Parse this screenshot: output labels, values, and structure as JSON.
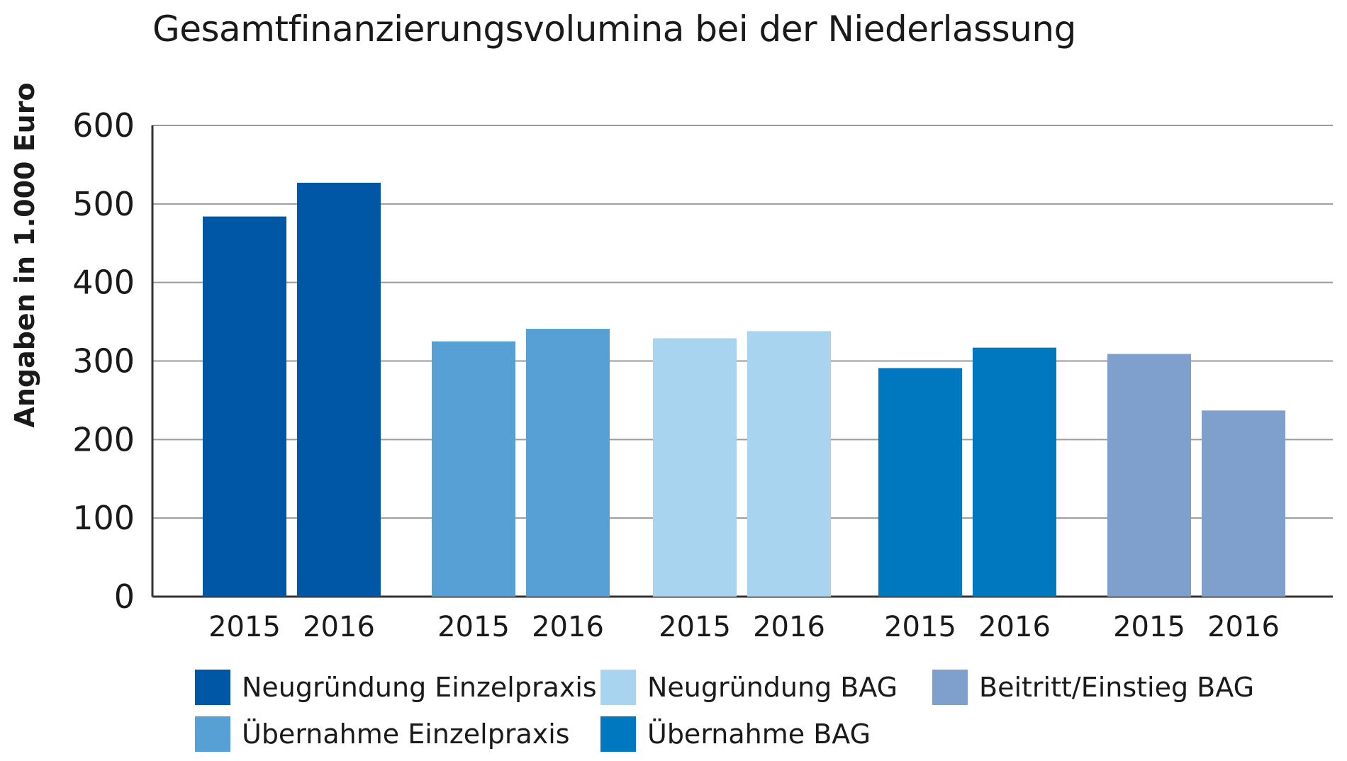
{
  "chart_data": {
    "type": "bar",
    "title": "Gesamtfinanzierungsvolumina bei der Niederlassung",
    "xlabel": "",
    "ylabel": "Angaben in 1.000 Euro",
    "ylim": [
      0,
      600
    ],
    "yticks": [
      "0",
      "100",
      "200",
      "300",
      "400",
      "500",
      "600"
    ],
    "grid": true,
    "legend_position": "bottom",
    "series": [
      {
        "name": "Neugründung Einzelpraxis",
        "color": "#0057a6",
        "categories": [
          "2015",
          "2016"
        ],
        "values": [
          484,
          527
        ]
      },
      {
        "name": "Übernahme Einzelpraxis",
        "color": "#57a0d5",
        "categories": [
          "2015",
          "2016"
        ],
        "values": [
          325,
          341
        ]
      },
      {
        "name": "Neugründung BAG",
        "color": "#a9d4f0",
        "categories": [
          "2015",
          "2016"
        ],
        "values": [
          329,
          338
        ]
      },
      {
        "name": "Übernahme BAG",
        "color": "#0078bf",
        "categories": [
          "2015",
          "2016"
        ],
        "values": [
          291,
          317
        ]
      },
      {
        "name": "Beitritt/Einstieg BAG",
        "color": "#7f9fcc",
        "categories": [
          "2015",
          "2016"
        ],
        "values": [
          309,
          237
        ]
      }
    ]
  }
}
